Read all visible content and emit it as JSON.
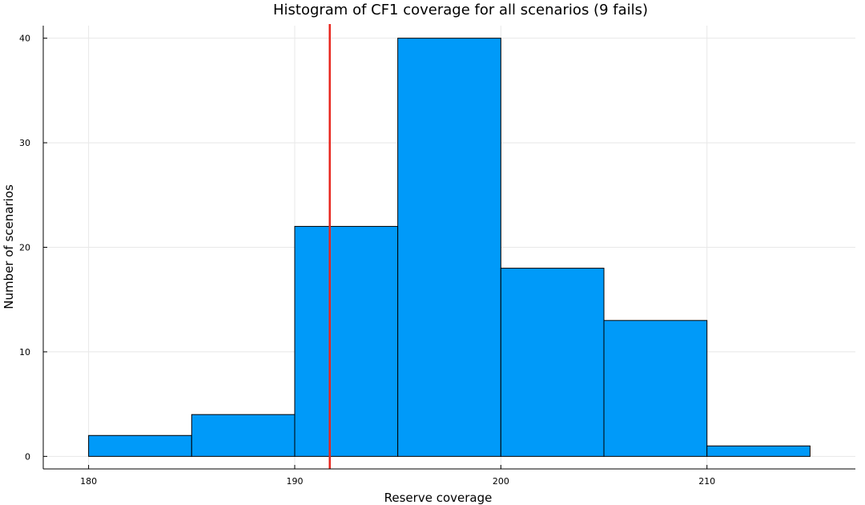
{
  "chart_data": {
    "type": "bar",
    "title": "Histogram of CF1 coverage for all scenarios (9 fails)",
    "xlabel": "Reserve coverage",
    "ylabel": "Number of scenarios",
    "bins": [
      {
        "start": 180,
        "end": 185,
        "count": 2
      },
      {
        "start": 185,
        "end": 190,
        "count": 4
      },
      {
        "start": 190,
        "end": 195,
        "count": 22
      },
      {
        "start": 195,
        "end": 200,
        "count": 40
      },
      {
        "start": 200,
        "end": 205,
        "count": 18
      },
      {
        "start": 205,
        "end": 210,
        "count": 13
      },
      {
        "start": 210,
        "end": 215,
        "count": 1
      }
    ],
    "xticks": [
      180,
      190,
      200,
      210
    ],
    "yticks": [
      0,
      10,
      20,
      30,
      40
    ],
    "xlim": [
      177.8,
      217.2
    ],
    "ylim": [
      -1.2,
      41.2
    ],
    "reference_line": {
      "x": 191.7,
      "color": "#e8261e"
    },
    "bar_color": "#009af9",
    "grid": true,
    "legend": "none"
  }
}
